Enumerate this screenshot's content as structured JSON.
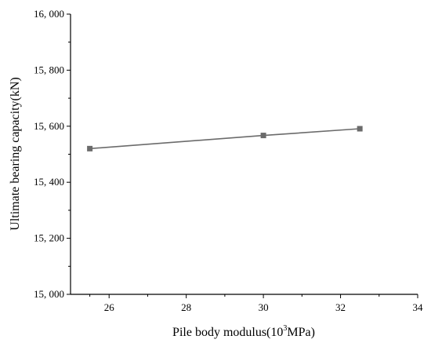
{
  "chart_data": {
    "type": "line",
    "title": "",
    "xlabel": "Pile body modulus(10",
    "xlabel_sup": "3",
    "xlabel_suffix": "MPa)",
    "ylabel": "Ultimate bearing capacity(kN)",
    "xlim": [
      25,
      34
    ],
    "ylim": [
      15000,
      16000
    ],
    "x_ticks": [
      26,
      28,
      30,
      32,
      34
    ],
    "x_tick_labels": [
      "26",
      "28",
      "30",
      "32",
      "34"
    ],
    "y_ticks": [
      15000,
      15200,
      15400,
      15600,
      15800,
      16000
    ],
    "y_tick_labels": [
      "15, 000",
      "15, 200",
      "15, 400",
      "15, 600",
      "15, 800",
      "16, 000"
    ],
    "grid": false,
    "series": [
      {
        "x": [
          25.5,
          30,
          32.5
        ],
        "y": [
          15520,
          15567,
          15591
        ],
        "marker": "square",
        "color": "#6b6b6b"
      }
    ]
  }
}
